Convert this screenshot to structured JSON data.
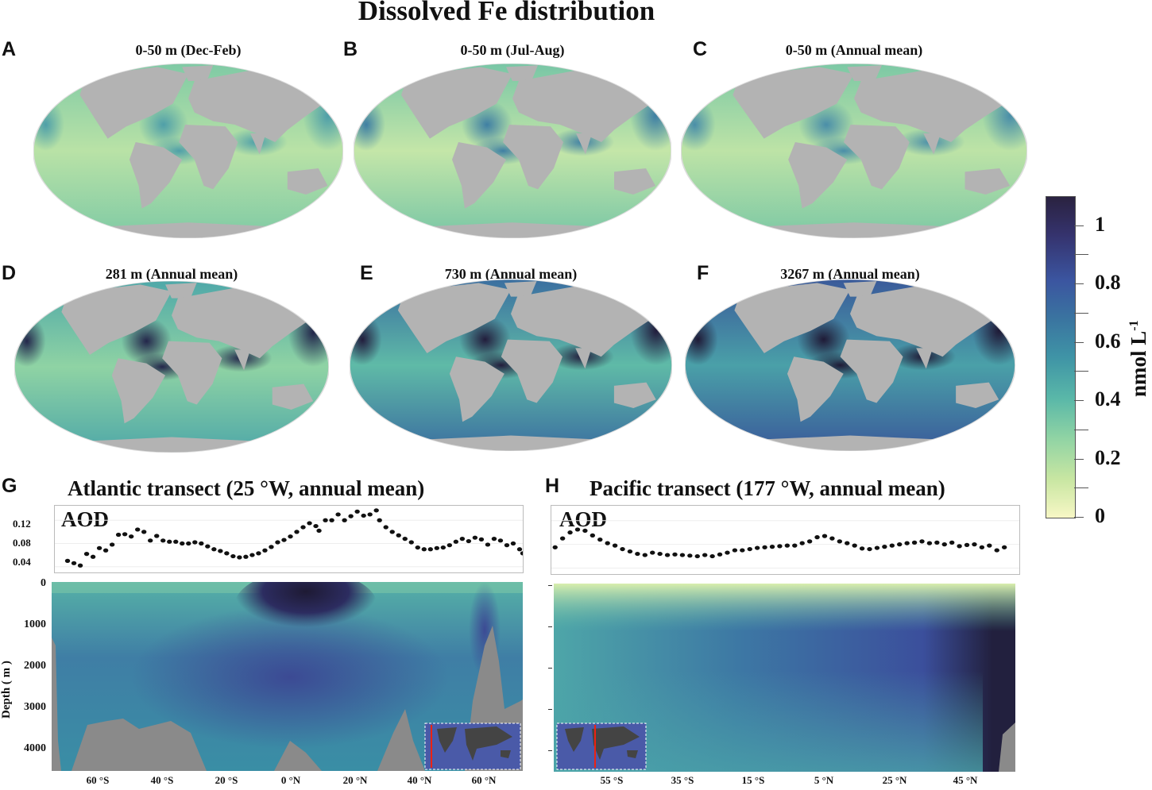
{
  "figure_title": "Dissolved Fe distribution",
  "colors": {
    "land": "#b3b3b3",
    "low": "#f7f7c5",
    "mid": "#5ab8a8",
    "high": "#2a2240"
  },
  "chart_data": [
    {
      "type": "heatmap",
      "panel": "A",
      "title": "0-50 m (Dec-Feb)",
      "ocean_colors": [
        "#b9e2a6",
        "#7fcaa5",
        "#4f9fa8"
      ]
    },
    {
      "type": "heatmap",
      "panel": "B",
      "title": "0-50 m (Jul-Aug)",
      "ocean_colors": [
        "#c4e6a8",
        "#78c6a6",
        "#3f7fa3"
      ]
    },
    {
      "type": "heatmap",
      "panel": "C",
      "title": "0-50 m (Annual mean)",
      "ocean_colors": [
        "#bde3a6",
        "#7cc8a5",
        "#4a8ea8"
      ]
    },
    {
      "type": "heatmap",
      "panel": "D",
      "title": "281 m (Annual mean)",
      "ocean_colors": [
        "#8fd3a4",
        "#4fa8a8",
        "#23264a"
      ]
    },
    {
      "type": "heatmap",
      "panel": "E",
      "title": "730 m (Annual mean)",
      "ocean_colors": [
        "#5fbaa7",
        "#3b6fa0",
        "#221d3c"
      ]
    },
    {
      "type": "heatmap",
      "panel": "F",
      "title": "3267 m (Annual mean)",
      "ocean_colors": [
        "#4aa0a8",
        "#3a5a9a",
        "#1f1a36"
      ]
    },
    {
      "type": "scatter",
      "panel": "G",
      "title": "Atlantic transect (25 °W, annual mean)",
      "aod": {
        "label": "AOD",
        "yticks": [
          "0.04",
          "0.08",
          "0.12"
        ],
        "ylim": [
          0.03,
          0.145
        ],
        "xlim": [
          -75,
          72
        ],
        "points": [
          [
            -71,
            0.05
          ],
          [
            -69,
            0.046
          ],
          [
            -67,
            0.042
          ],
          [
            -65,
            0.062
          ],
          [
            -63,
            0.057
          ],
          [
            -61,
            0.072
          ],
          [
            -59,
            0.068
          ],
          [
            -57,
            0.078
          ],
          [
            -55,
            0.095
          ],
          [
            -53,
            0.096
          ],
          [
            -51,
            0.092
          ],
          [
            -49,
            0.104
          ],
          [
            -47,
            0.1
          ],
          [
            -45,
            0.085
          ],
          [
            -43,
            0.093
          ],
          [
            -41,
            0.085
          ],
          [
            -39,
            0.083
          ],
          [
            -37,
            0.083
          ],
          [
            -35,
            0.08
          ],
          [
            -33,
            0.08
          ],
          [
            -31,
            0.082
          ],
          [
            -29,
            0.08
          ],
          [
            -27,
            0.075
          ],
          [
            -25,
            0.07
          ],
          [
            -23,
            0.067
          ],
          [
            -21,
            0.063
          ],
          [
            -19,
            0.058
          ],
          [
            -17,
            0.056
          ],
          [
            -15,
            0.057
          ],
          [
            -13,
            0.06
          ],
          [
            -11,
            0.063
          ],
          [
            -9,
            0.068
          ],
          [
            -7,
            0.074
          ],
          [
            -5,
            0.082
          ],
          [
            -3,
            0.086
          ],
          [
            -1,
            0.092
          ],
          [
            1,
            0.1
          ],
          [
            3,
            0.108
          ],
          [
            5,
            0.115
          ],
          [
            7,
            0.11
          ],
          [
            8,
            0.102
          ],
          [
            10,
            0.12
          ],
          [
            12,
            0.12
          ],
          [
            14,
            0.13
          ],
          [
            16,
            0.12
          ],
          [
            18,
            0.127
          ],
          [
            20,
            0.135
          ],
          [
            22,
            0.128
          ],
          [
            24,
            0.13
          ],
          [
            26,
            0.137
          ],
          [
            27,
            0.12
          ],
          [
            29,
            0.108
          ],
          [
            31,
            0.1
          ],
          [
            33,
            0.094
          ],
          [
            35,
            0.088
          ],
          [
            37,
            0.082
          ],
          [
            39,
            0.073
          ],
          [
            41,
            0.07
          ],
          [
            43,
            0.07
          ],
          [
            45,
            0.072
          ],
          [
            47,
            0.073
          ],
          [
            49,
            0.077
          ],
          [
            51,
            0.083
          ],
          [
            53,
            0.088
          ],
          [
            55,
            0.084
          ],
          [
            57,
            0.09
          ],
          [
            59,
            0.087
          ],
          [
            61,
            0.078
          ],
          [
            63,
            0.088
          ],
          [
            65,
            0.085
          ],
          [
            67,
            0.077
          ],
          [
            69,
            0.08
          ],
          [
            71,
            0.07
          ],
          [
            72,
            0.063
          ]
        ]
      },
      "depth": {
        "ylabel": "Depth ( m )",
        "yticks": [
          "0",
          "1000",
          "2000",
          "3000",
          "4000"
        ],
        "ylim": [
          0,
          4500
        ],
        "xticks": [
          "60 °S",
          "40 °S",
          "20 °S",
          "0 °N",
          "20 °N",
          "40 °N",
          "60 °N"
        ]
      }
    },
    {
      "type": "scatter",
      "panel": "H",
      "title": "Pacific transect (177 °W, annual mean)",
      "aod": {
        "label": "AOD",
        "xlim": [
          -67,
          58
        ],
        "ylim": [
          0.03,
          0.145
        ],
        "points": [
          [
            -66,
            0.075
          ],
          [
            -64,
            0.09
          ],
          [
            -62,
            0.1
          ],
          [
            -60,
            0.105
          ],
          [
            -58,
            0.103
          ],
          [
            -56,
            0.095
          ],
          [
            -54,
            0.088
          ],
          [
            -52,
            0.082
          ],
          [
            -50,
            0.078
          ],
          [
            -48,
            0.072
          ],
          [
            -46,
            0.068
          ],
          [
            -44,
            0.064
          ],
          [
            -42,
            0.062
          ],
          [
            -40,
            0.066
          ],
          [
            -38,
            0.064
          ],
          [
            -36,
            0.062
          ],
          [
            -34,
            0.063
          ],
          [
            -32,
            0.062
          ],
          [
            -30,
            0.061
          ],
          [
            -28,
            0.06
          ],
          [
            -26,
            0.062
          ],
          [
            -24,
            0.06
          ],
          [
            -22,
            0.063
          ],
          [
            -20,
            0.066
          ],
          [
            -18,
            0.07
          ],
          [
            -16,
            0.07
          ],
          [
            -14,
            0.072
          ],
          [
            -12,
            0.074
          ],
          [
            -10,
            0.075
          ],
          [
            -8,
            0.076
          ],
          [
            -6,
            0.077
          ],
          [
            -4,
            0.078
          ],
          [
            -2,
            0.078
          ],
          [
            0,
            0.082
          ],
          [
            2,
            0.085
          ],
          [
            4,
            0.092
          ],
          [
            6,
            0.094
          ],
          [
            8,
            0.09
          ],
          [
            10,
            0.085
          ],
          [
            12,
            0.082
          ],
          [
            14,
            0.078
          ],
          [
            16,
            0.073
          ],
          [
            18,
            0.072
          ],
          [
            20,
            0.074
          ],
          [
            22,
            0.076
          ],
          [
            24,
            0.078
          ],
          [
            26,
            0.08
          ],
          [
            28,
            0.082
          ],
          [
            30,
            0.083
          ],
          [
            32,
            0.085
          ],
          [
            34,
            0.082
          ],
          [
            36,
            0.083
          ],
          [
            38,
            0.08
          ],
          [
            40,
            0.083
          ],
          [
            42,
            0.077
          ],
          [
            44,
            0.079
          ],
          [
            46,
            0.08
          ],
          [
            48,
            0.075
          ],
          [
            50,
            0.078
          ],
          [
            52,
            0.07
          ],
          [
            54,
            0.075
          ]
        ]
      },
      "depth": {
        "xticks": [
          "55 °S",
          "35 °S",
          "15 °S",
          "5 °N",
          "25 °N",
          "45 °N"
        ]
      }
    }
  ],
  "colorbar": {
    "label": "nmol L",
    "label_sup": "-1",
    "ticks": [
      "0",
      "0.2",
      "0.4",
      "0.6",
      "0.8",
      "1"
    ],
    "range": [
      0,
      1.1
    ]
  }
}
